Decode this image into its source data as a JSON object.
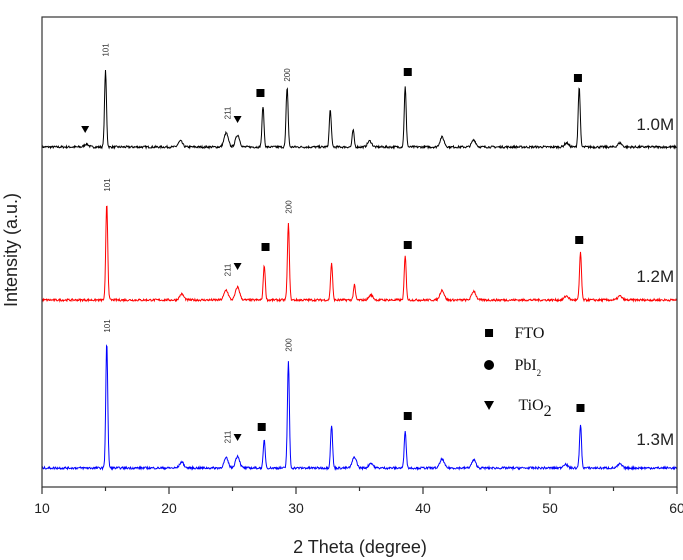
{
  "chart_data": {
    "type": "line",
    "title": "",
    "xlabel": "2 Theta (degree)",
    "ylabel": "Intensity (a.u.)",
    "xlim": [
      10,
      60
    ],
    "ylim": [
      0,
      470
    ],
    "xticks": [
      10,
      20,
      30,
      40,
      50,
      60
    ],
    "grid": false,
    "series": [
      {
        "name": "1.0M",
        "color": "#000000",
        "offset": 340,
        "peaks": [
          [
            13.5,
            3
          ],
          [
            15.0,
            76
          ],
          [
            20.9,
            6
          ],
          [
            24.5,
            14
          ],
          [
            25.4,
            12
          ],
          [
            27.4,
            41
          ],
          [
            29.3,
            60
          ],
          [
            32.7,
            37
          ],
          [
            34.5,
            17
          ],
          [
            35.8,
            6
          ],
          [
            38.6,
            60
          ],
          [
            41.5,
            10
          ],
          [
            44.0,
            7
          ],
          [
            51.3,
            4
          ],
          [
            52.3,
            60
          ],
          [
            55.5,
            4
          ]
        ]
      },
      {
        "name": "1.2M",
        "color": "#ff0000",
        "offset": 187,
        "peaks": [
          [
            15.1,
            97
          ],
          [
            21.0,
            6
          ],
          [
            24.5,
            10
          ],
          [
            25.4,
            13
          ],
          [
            27.5,
            35
          ],
          [
            29.4,
            76
          ],
          [
            32.8,
            37
          ],
          [
            34.6,
            15
          ],
          [
            35.9,
            5
          ],
          [
            38.6,
            44
          ],
          [
            41.5,
            10
          ],
          [
            44.0,
            9
          ],
          [
            51.3,
            4
          ],
          [
            52.4,
            48
          ],
          [
            55.5,
            4
          ]
        ]
      },
      {
        "name": "1.3M",
        "color": "#0000ff",
        "offset": 19,
        "peaks": [
          [
            15.1,
            126
          ],
          [
            21.0,
            6
          ],
          [
            24.5,
            10
          ],
          [
            25.4,
            12
          ],
          [
            27.5,
            28
          ],
          [
            29.4,
            106
          ],
          [
            32.8,
            43
          ],
          [
            34.6,
            11
          ],
          [
            35.9,
            5
          ],
          [
            38.6,
            38
          ],
          [
            41.5,
            9
          ],
          [
            44.0,
            8
          ],
          [
            51.2,
            4
          ],
          [
            52.4,
            44
          ],
          [
            55.5,
            4
          ]
        ]
      }
    ],
    "annotations": [
      {
        "type": "text",
        "text": "101",
        "x": 15.0,
        "y": 437
      },
      {
        "type": "triangle",
        "x": 13.4,
        "y": 358
      },
      {
        "type": "text",
        "text": "211",
        "x": 24.6,
        "y": 374
      },
      {
        "type": "triangle",
        "x": 25.4,
        "y": 368
      },
      {
        "type": "square",
        "x": 27.2,
        "y": 394
      },
      {
        "type": "text",
        "text": "200",
        "x": 29.3,
        "y": 412
      },
      {
        "type": "square",
        "x": 38.8,
        "y": 415
      },
      {
        "type": "square",
        "x": 52.2,
        "y": 409
      },
      {
        "type": "text",
        "text": "101",
        "x": 15.1,
        "y": 302
      },
      {
        "type": "text",
        "text": "211",
        "x": 24.6,
        "y": 217
      },
      {
        "type": "triangle",
        "x": 25.4,
        "y": 221
      },
      {
        "type": "square",
        "x": 27.6,
        "y": 240
      },
      {
        "type": "text",
        "text": "200",
        "x": 29.4,
        "y": 280
      },
      {
        "type": "square",
        "x": 38.8,
        "y": 242
      },
      {
        "type": "square",
        "x": 52.3,
        "y": 247
      },
      {
        "type": "text",
        "text": "101",
        "x": 15.1,
        "y": 161
      },
      {
        "type": "text",
        "text": "211",
        "x": 24.6,
        "y": 50
      },
      {
        "type": "triangle",
        "x": 25.4,
        "y": 50
      },
      {
        "type": "square",
        "x": 27.3,
        "y": 60
      },
      {
        "type": "text",
        "text": "200",
        "x": 29.4,
        "y": 142
      },
      {
        "type": "square",
        "x": 38.8,
        "y": 71
      },
      {
        "type": "square",
        "x": 52.4,
        "y": 79
      }
    ],
    "series_labels": [
      {
        "text": "1.0M",
        "x": 56.8,
        "y": 357
      },
      {
        "text": "1.2M",
        "x": 56.8,
        "y": 205
      },
      {
        "text": "1.3M",
        "x": 56.8,
        "y": 42
      }
    ],
    "legend": {
      "placement": "center-right",
      "items": [
        {
          "symbol": "square",
          "label": "FTO"
        },
        {
          "symbol": "circle",
          "label": "PbI",
          "sub": "2"
        },
        {
          "symbol": "triangle",
          "label": "TiO",
          "sub": "2"
        }
      ]
    }
  }
}
